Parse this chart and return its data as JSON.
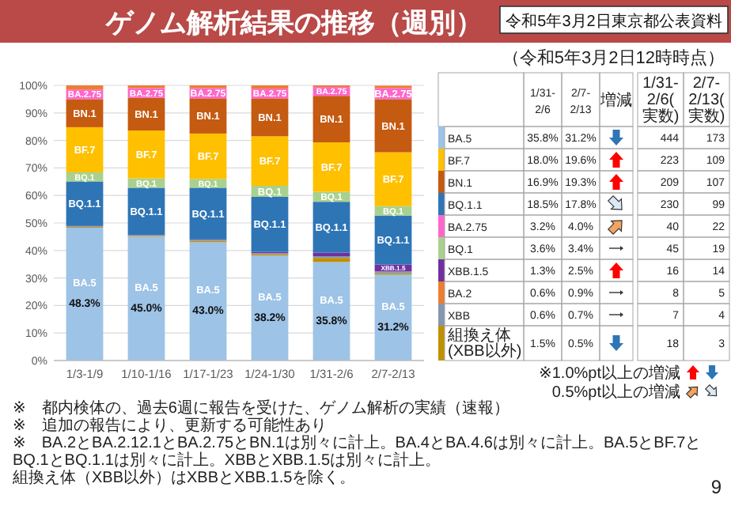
{
  "chart_data": [
    {
      "type": "bar",
      "stacked": true,
      "title": "ゲノム解析結果の推移（週別）",
      "categories": [
        "1/3-1/9",
        "1/10-1/16",
        "1/17-1/23",
        "1/24-1/30",
        "1/31-2/6",
        "2/7-2/13"
      ],
      "ylim": [
        0,
        100
      ],
      "yticks": [
        {
          "value": 0,
          "label": "0%"
        },
        {
          "value": 10,
          "label": "10%"
        },
        {
          "value": 20,
          "label": "20%"
        },
        {
          "value": 30,
          "label": "30%"
        },
        {
          "value": 40,
          "label": "40%"
        },
        {
          "value": 50,
          "label": "50%"
        },
        {
          "value": 60,
          "label": "60%"
        },
        {
          "value": 70,
          "label": "70%"
        },
        {
          "value": 80,
          "label": "80%"
        },
        {
          "value": 90,
          "label": "90%"
        },
        {
          "value": 100,
          "label": "100%"
        }
      ],
      "grid": "y",
      "series": [
        {
          "name": "BA.5",
          "color": "#9dc3e6",
          "values": [
            48.3,
            45.0,
            43.0,
            38.2,
            35.8,
            31.2
          ],
          "value_labels": [
            "48.3%",
            "45.0%",
            "43.0%",
            "38.2%",
            "35.8%",
            "31.2%"
          ]
        },
        {
          "color": "#bf9000",
          "values": [
            0.3,
            0.3,
            0.5,
            0.5,
            1.5,
            0.5
          ]
        },
        {
          "color": "#8497b0",
          "values": [
            0.2,
            0.2,
            0.3,
            0.3,
            0.6,
            0.7
          ]
        },
        {
          "name": "XBB.1.5",
          "color": "#7030a0",
          "values": [
            0.1,
            0.1,
            0.2,
            0.5,
            1.3,
            2.5
          ]
        },
        {
          "name": "BQ.1.1",
          "color": "#2e75b6",
          "values": [
            16.2,
            17.2,
            18.8,
            20.0,
            18.5,
            17.8
          ]
        },
        {
          "name": "BQ.1",
          "color": "#a9d18e",
          "values": [
            3.3,
            3.4,
            3.2,
            4.0,
            3.6,
            3.4
          ]
        },
        {
          "name": "BF.7",
          "color": "#ffc000",
          "values": [
            16.4,
            17.4,
            16.5,
            18.0,
            18.0,
            19.6
          ]
        },
        {
          "name": "BN.1",
          "color": "#c55a11",
          "values": [
            10.2,
            11.9,
            12.8,
            13.8,
            16.9,
            19.3
          ]
        },
        {
          "name": "BA.2.75",
          "color": "#ff66cc",
          "values": [
            3.5,
            3.5,
            3.7,
            3.5,
            3.2,
            4.0
          ]
        },
        {
          "color": "#ed7d31",
          "values": [
            1.5,
            1.0,
            1.0,
            1.2,
            0.6,
            0.9
          ]
        }
      ],
      "annotations": [
        "令和5年3月2日東京都公表資料",
        "※　都内検体の、過去6週に報告を受けた、ゲノム解析の実績（速報）",
        "※　追加の報告により、更新する可能性あり",
        "※　BA.2とBA.2.12.1とBA.2.75とBN.1は別々に計上。BA.4とBA.4.6は別々に計上。BA.5とBF.7とBQ.1とBQ.1.1は別々に計上。XBBとXBB.1.5は別々に計上。",
        "組換え体（XBB以外）はXBBとXBB.1.5を除く。",
        "9"
      ]
    },
    {
      "type": "other",
      "data_labels": true,
      "title": "（令和5年3月2日12時時点）",
      "categories": [
        "BA.5",
        "BF.7",
        "BN.1",
        "BQ.1.1",
        "BA.2.75",
        "BQ.1",
        "XBB.1.5",
        "BA.2",
        "XBB",
        "組換え体(XBB以外)"
      ],
      "colors": [
        "#9dc3e6",
        "#ffc000",
        "#c55a11",
        "#2e75b6",
        "#ff66cc",
        "#a9d18e",
        "#7030a0",
        "#ed7d31",
        "#8497b0",
        "#bf9000"
      ],
      "series": [
        {
          "name": "1/31-2/6",
          "values": [
            35.8,
            18.0,
            16.9,
            18.5,
            3.2,
            3.6,
            1.3,
            0.6,
            0.6,
            1.5
          ],
          "value_labels": [
            "35.8%",
            "18.0%",
            "16.9%",
            "18.5%",
            "3.2%",
            "3.6%",
            "1.3%",
            "0.6%",
            "0.6%",
            "1.5%"
          ]
        },
        {
          "name": "2/7-2/13",
          "values": [
            31.2,
            19.6,
            19.3,
            17.8,
            4.0,
            3.4,
            2.5,
            0.9,
            0.7,
            0.5
          ],
          "value_labels": [
            "31.2%",
            "19.6%",
            "19.3%",
            "17.8%",
            "4.0%",
            "3.4%",
            "2.5%",
            "0.9%",
            "0.7%",
            "0.5%"
          ]
        },
        {
          "name": "1/31-2/6(実数)",
          "values": [
            444,
            223,
            209,
            230,
            40,
            45,
            16,
            8,
            7,
            18
          ]
        },
        {
          "name": "2/7-2/13(実数)",
          "values": [
            173,
            109,
            107,
            99,
            22,
            19,
            14,
            5,
            4,
            3
          ]
        }
      ],
      "annotations": [
        "増減",
        "※1.0%pt以上の増減",
        "0.5%pt以上の増減"
      ]
    }
  ]
}
